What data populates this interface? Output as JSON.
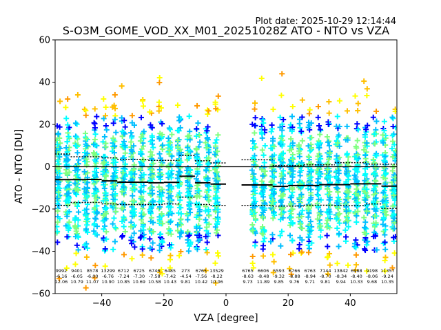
{
  "chart_data": {
    "type": "scatter",
    "title": "S-O3M_GOME_VOD_XX_M01_20251028Z ATO - NTO vs VZA",
    "plot_date": "Plot date: 2025-10-29 12:14:44",
    "xlabel": "VZA [degree]",
    "ylabel": "ATO - NTO [DU]",
    "xlim": [
      -55,
      55
    ],
    "ylim": [
      -60,
      60
    ],
    "xticks": [
      -40,
      -20,
      0,
      20,
      40
    ],
    "yticks": [
      -60,
      -40,
      -20,
      0,
      20,
      40,
      60
    ],
    "zero_line": 0,
    "columns_x": [
      -54,
      -51,
      -48,
      -45,
      -42,
      -39,
      -36,
      -33,
      -30,
      -27,
      -24,
      -21,
      -18,
      -15,
      -12,
      -9,
      -6,
      -3,
      9,
      12,
      15,
      18,
      21,
      24,
      27,
      30,
      33,
      36,
      39,
      42,
      45,
      48,
      51,
      54
    ],
    "point_colors": [
      "#0000ff",
      "#00bfff",
      "#00ffff",
      "#7fff7f",
      "#ffff00",
      "#ffbf00",
      "#ff9900"
    ],
    "mean_line": [
      {
        "x0": -55,
        "x1": -45,
        "y": -6.1
      },
      {
        "x0": -45,
        "x1": -40,
        "y": -6.0
      },
      {
        "x0": -40,
        "x1": -35,
        "y": -6.7
      },
      {
        "x0": -35,
        "x1": -25,
        "y": -7.3
      },
      {
        "x0": -25,
        "x1": -20,
        "y": -7.6
      },
      {
        "x0": -20,
        "x1": -15,
        "y": -7.4
      },
      {
        "x0": -15,
        "x1": -10,
        "y": -4.5
      },
      {
        "x0": -10,
        "x1": -5,
        "y": -7.6
      },
      {
        "x0": -5,
        "x1": 0,
        "y": -8.2
      },
      {
        "x0": 5,
        "x1": 15,
        "y": -8.6
      },
      {
        "x0": 15,
        "x1": 20,
        "y": -9.3
      },
      {
        "x0": 20,
        "x1": 30,
        "y": -8.9
      },
      {
        "x0": 30,
        "x1": 40,
        "y": -8.5
      },
      {
        "x0": 40,
        "x1": 50,
        "y": -8.1
      },
      {
        "x0": 50,
        "x1": 55,
        "y": -9.2
      }
    ],
    "upper_line": [
      {
        "x0": -55,
        "x1": -50,
        "y": 6.0
      },
      {
        "x0": -50,
        "x1": -40,
        "y": 4.7
      },
      {
        "x0": -40,
        "x1": -35,
        "y": 4.2
      },
      {
        "x0": -35,
        "x1": -25,
        "y": 3.5
      },
      {
        "x0": -25,
        "x1": -15,
        "y": 3.0
      },
      {
        "x0": -15,
        "x1": -10,
        "y": 5.3
      },
      {
        "x0": -10,
        "x1": -5,
        "y": 2.8
      },
      {
        "x0": -5,
        "x1": 0,
        "y": 1.8
      },
      {
        "x0": 5,
        "x1": 15,
        "y": 3.3
      },
      {
        "x0": 15,
        "x1": 25,
        "y": 0.6
      },
      {
        "x0": 25,
        "x1": 35,
        "y": 0.9
      },
      {
        "x0": 35,
        "x1": 45,
        "y": 1.9
      },
      {
        "x0": 45,
        "x1": 55,
        "y": 1.2
      }
    ],
    "lower_line": [
      {
        "x0": -55,
        "x1": -50,
        "y": -18.3
      },
      {
        "x0": -50,
        "x1": -40,
        "y": -16.9
      },
      {
        "x0": -40,
        "x1": -35,
        "y": -17.6
      },
      {
        "x0": -35,
        "x1": -20,
        "y": -17.9
      },
      {
        "x0": -20,
        "x1": -15,
        "y": -17.6
      },
      {
        "x0": -15,
        "x1": -10,
        "y": -14.4
      },
      {
        "x0": -10,
        "x1": -5,
        "y": -17.9
      },
      {
        "x0": -5,
        "x1": 0,
        "y": -18.3
      },
      {
        "x0": 5,
        "x1": 15,
        "y": -18.3
      },
      {
        "x0": 15,
        "x1": 25,
        "y": -18.6
      },
      {
        "x0": 25,
        "x1": 35,
        "y": -18.2
      },
      {
        "x0": 35,
        "x1": 45,
        "y": -18.4
      },
      {
        "x0": 45,
        "x1": 50,
        "y": -17.6
      },
      {
        "x0": 50,
        "x1": 55,
        "y": -19.7
      }
    ],
    "stats": [
      {
        "x": -53,
        "lines": [
          "9992",
          "-6.16",
          "12.06"
        ]
      },
      {
        "x": -48,
        "lines": [
          "9401",
          "-6.05",
          "10.79"
        ]
      },
      {
        "x": -43,
        "lines": [
          "8578",
          "-6.00",
          "11.07"
        ]
      },
      {
        "x": -38,
        "lines": [
          "13299",
          "-6.76",
          "10.90"
        ]
      },
      {
        "x": -33,
        "lines": [
          "6712",
          "-7.24",
          "10.85"
        ]
      },
      {
        "x": -28,
        "lines": [
          "6725",
          "-7.30",
          "10.69"
        ]
      },
      {
        "x": -23,
        "lines": [
          "6746",
          "-7.58",
          "10.58"
        ]
      },
      {
        "x": -18,
        "lines": [
          "6485",
          "-7.42",
          "10.43"
        ]
      },
      {
        "x": -13,
        "lines": [
          "273",
          "-4.54",
          "9.81"
        ]
      },
      {
        "x": -8,
        "lines": [
          "6765",
          "-7.56",
          "10.42"
        ]
      },
      {
        "x": -3,
        "lines": [
          "13529",
          "-8.22",
          "10.06"
        ]
      },
      {
        "x": 7,
        "lines": [
          "6765",
          "-8.63",
          "9.73"
        ]
      },
      {
        "x": 12,
        "lines": [
          "6606",
          "-8.48",
          "11.89"
        ]
      },
      {
        "x": 17,
        "lines": [
          "5593",
          "-9.32",
          "9.85"
        ]
      },
      {
        "x": 22,
        "lines": [
          "6766",
          "-8.88",
          "9.76"
        ]
      },
      {
        "x": 27,
        "lines": [
          "6763",
          "-8.94",
          "9.71"
        ]
      },
      {
        "x": 32,
        "lines": [
          "7144",
          "-8.70",
          "9.81"
        ]
      },
      {
        "x": 37,
        "lines": [
          "13842",
          "-8.34",
          "9.94"
        ]
      },
      {
        "x": 42,
        "lines": [
          "6988",
          "-8.40",
          "10.33"
        ]
      },
      {
        "x": 47,
        "lines": [
          "9198",
          "-8.06",
          "9.68"
        ]
      },
      {
        "x": 52,
        "lines": [
          "11357",
          "-9.24",
          "10.35"
        ]
      }
    ]
  }
}
